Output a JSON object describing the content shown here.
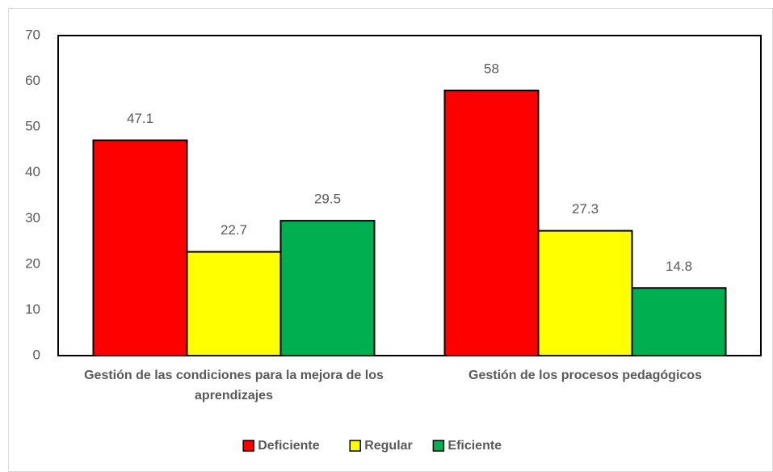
{
  "chart_data": {
    "type": "bar",
    "categories": [
      "Gestión de las condiciones para la mejora de los aprendizajes",
      "Gestión de los procesos pedagógicos"
    ],
    "series": [
      {
        "name": "Deficiente",
        "color": "#ff0000",
        "values": [
          47.1,
          58
        ]
      },
      {
        "name": "Regular",
        "color": "#ffff00",
        "values": [
          22.7,
          27.3
        ]
      },
      {
        "name": "Eficiente",
        "color": "#00b050",
        "values": [
          29.5,
          14.8
        ]
      }
    ],
    "ylim": [
      0,
      70
    ],
    "yticks": [
      0,
      10,
      20,
      30,
      40,
      50,
      60,
      70
    ],
    "legend": "bottom"
  }
}
